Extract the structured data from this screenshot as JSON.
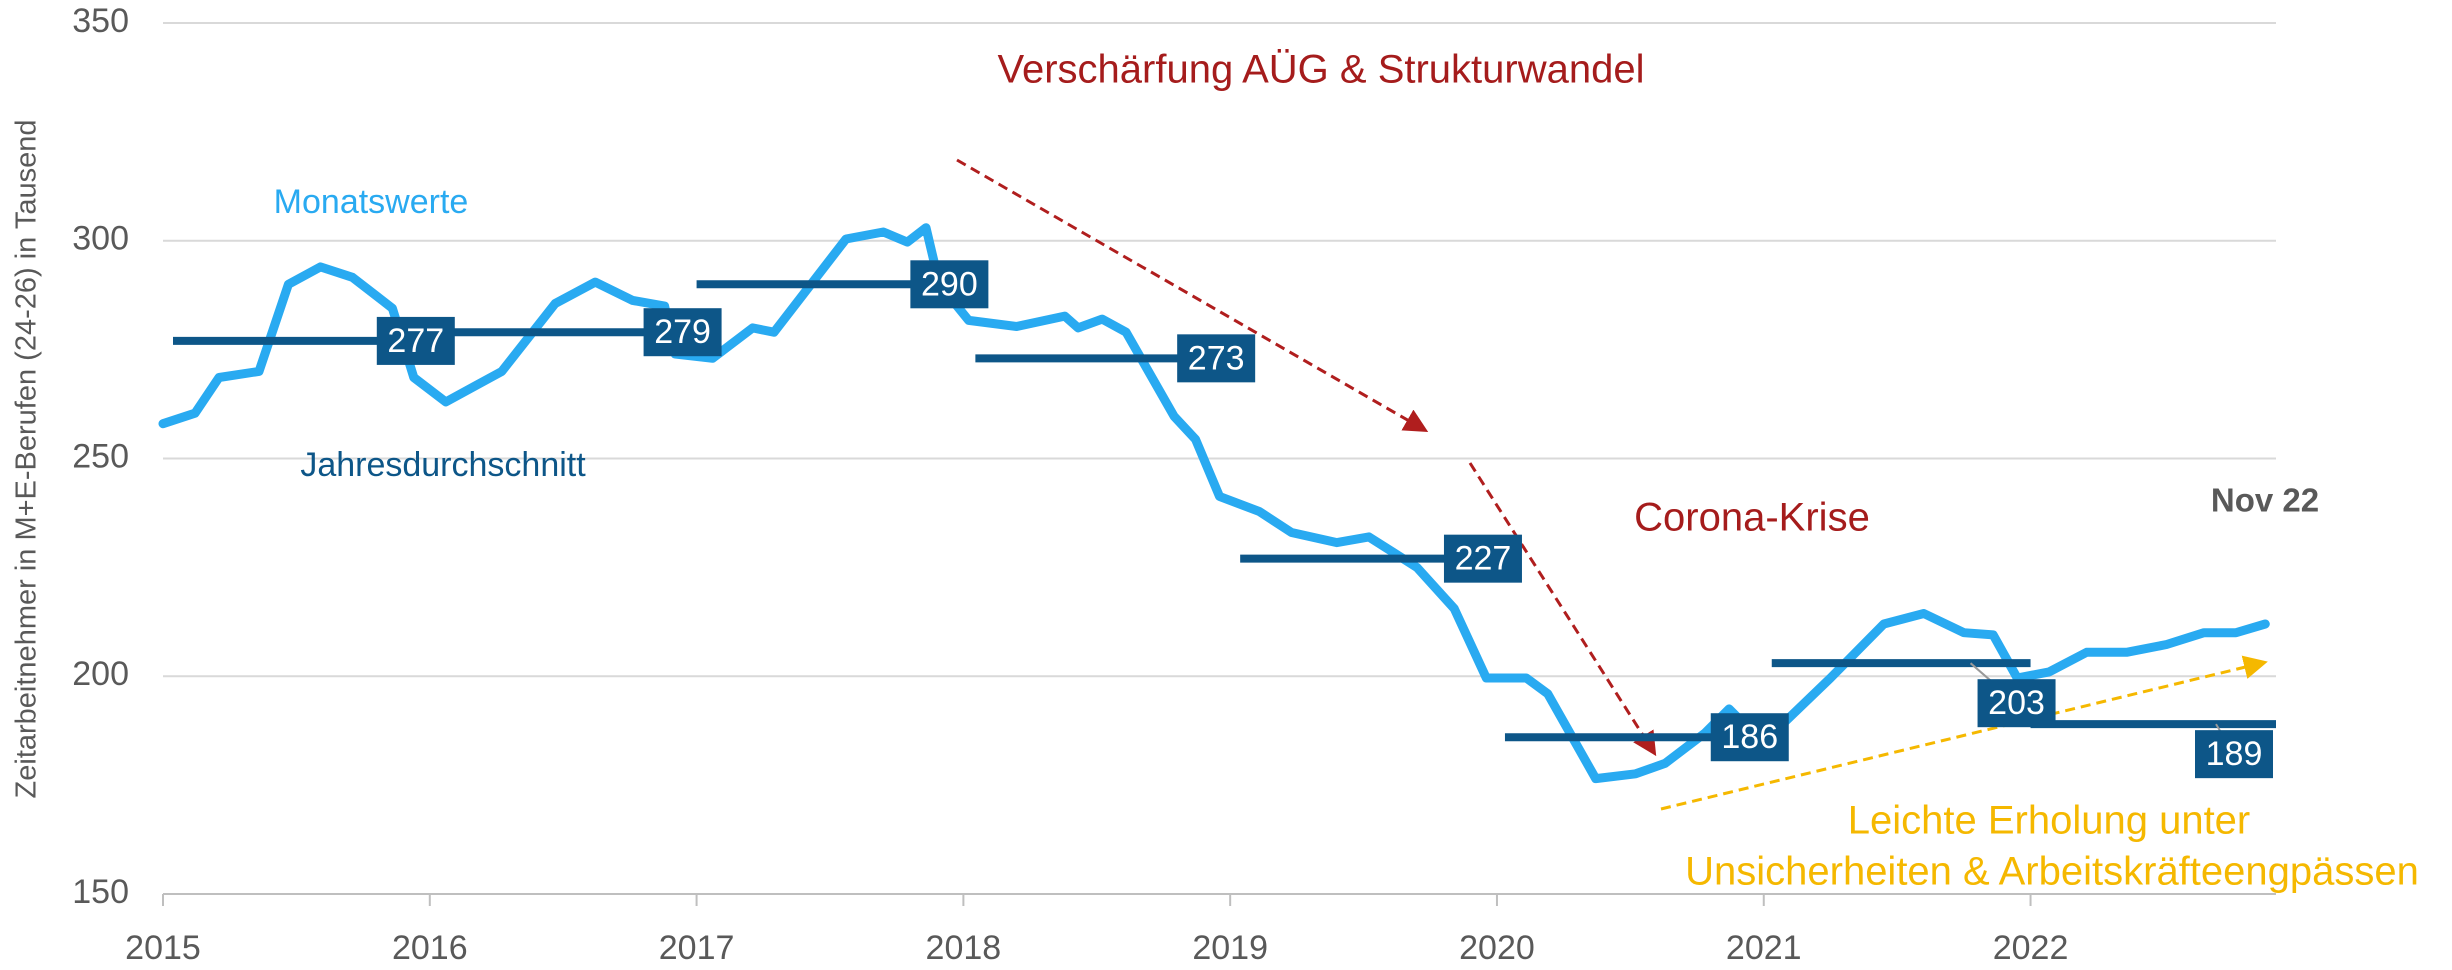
{
  "chart_data": {
    "type": "line",
    "y_label": "Zeitarbeitnehmer in M+E-Berufen (24-26) in Tausend",
    "annotations": [
      "Verschärfung AÜG & Strukturwandel",
      "Corona-Krise",
      "Leichte Erholung unter",
      "Unsicherheiten & Arbeitskräfteengpässen",
      "Nov 22"
    ],
    "xlim": [
      2015,
      2022.92
    ],
    "xticks": [
      2015,
      2016,
      2017,
      2018,
      2019,
      2020,
      2021,
      2022
    ],
    "ylim": [
      150,
      350
    ],
    "yticks": [
      150,
      200,
      250,
      300,
      350
    ],
    "grid": true,
    "series": [
      {
        "name": "Monatswerte",
        "color": "#29aaf1",
        "x": [
          2015.0,
          2015.12,
          2015.21,
          2015.36,
          2015.47,
          2015.59,
          2015.71,
          2015.86,
          2015.94,
          2016.06,
          2016.27,
          2016.47,
          2016.62,
          2016.76,
          2016.88,
          2016.92,
          2017.06,
          2017.21,
          2017.29,
          2017.56,
          2017.7,
          2017.79,
          2017.86,
          2017.91,
          2018.02,
          2018.2,
          2018.38,
          2018.43,
          2018.52,
          2018.61,
          2018.79,
          2018.87,
          2018.96,
          2019.11,
          2019.23,
          2019.4,
          2019.52,
          2019.7,
          2019.84,
          2019.96,
          2020.11,
          2020.19,
          2020.37,
          2020.52,
          2020.63,
          2020.78,
          2020.87,
          2020.96,
          2021.07,
          2021.25,
          2021.45,
          2021.6,
          2021.75,
          2021.86,
          2021.95,
          2022.07,
          2022.21,
          2022.36,
          2022.51,
          2022.65,
          2022.77,
          2022.88
        ],
        "values": [
          258,
          260.4,
          268.6,
          270,
          290,
          294,
          291.6,
          284.5,
          268.6,
          263,
          270,
          285.6,
          290.5,
          286.3,
          285,
          274,
          273,
          280,
          279,
          300.4,
          302,
          299.7,
          303,
          290,
          281.7,
          280.3,
          282.7,
          280,
          282,
          279,
          259.7,
          254.4,
          241.3,
          237.8,
          233,
          230.7,
          232,
          225,
          215.5,
          199.6,
          199.6,
          196,
          176.5,
          177.6,
          180,
          187,
          192.5,
          187,
          189,
          199.6,
          212,
          214.4,
          210,
          209.5,
          199.6,
          201,
          205.5,
          205.5,
          207.3,
          210,
          210,
          212
        ]
      },
      {
        "name": "Jahresdurchschnitt",
        "color": "#0d5688",
        "x": [
          2015,
          2016,
          2017,
          2018,
          2019,
          2020,
          2021,
          2022
        ],
        "values": [
          277,
          279,
          290,
          273,
          227,
          186,
          203,
          189
        ]
      }
    ]
  }
}
